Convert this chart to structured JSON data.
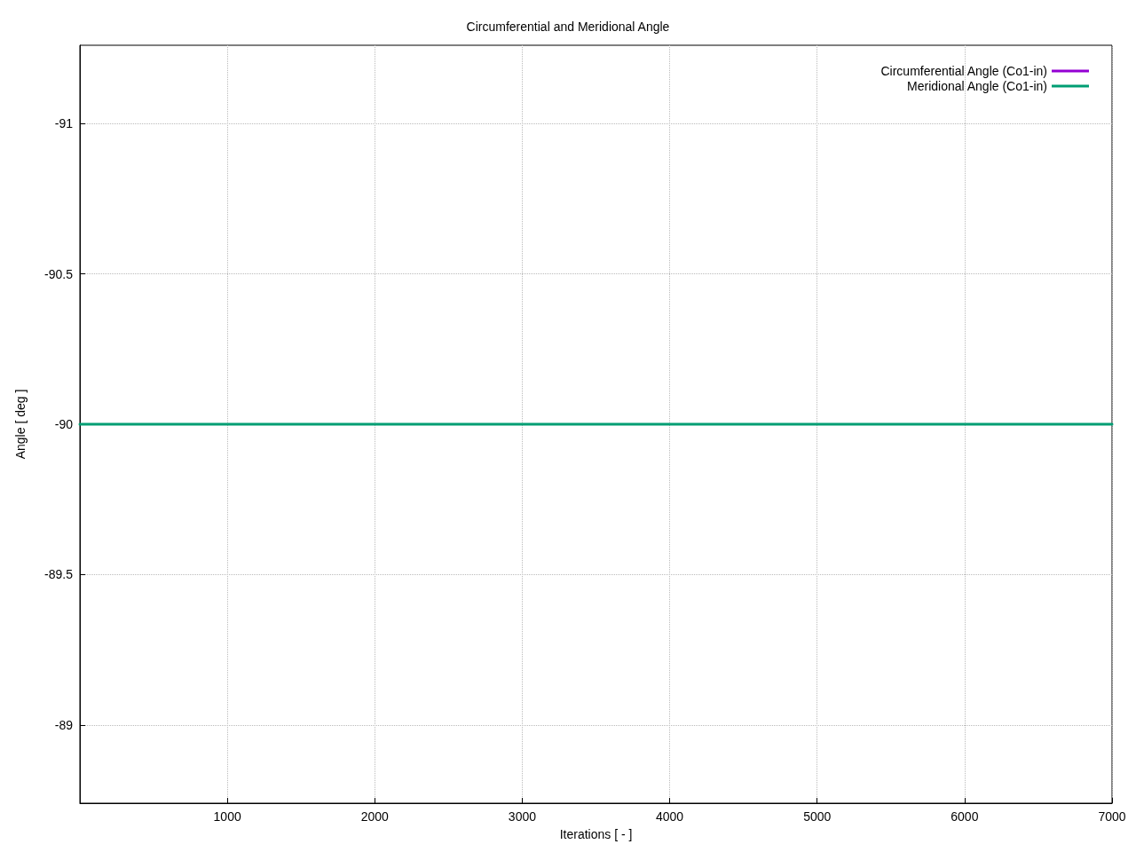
{
  "chart_data": {
    "type": "line",
    "title": "Circumferential and Meridional Angle",
    "xlabel": "Iterations [ - ]",
    "ylabel": "Angle [ deg ]",
    "x": [
      0,
      7000
    ],
    "xlim": [
      0,
      7000
    ],
    "xticks": [
      1000,
      2000,
      3000,
      4000,
      5000,
      6000,
      7000
    ],
    "ylim": [
      -88.74,
      -91.26
    ],
    "yticks": [
      -91,
      -90.5,
      -90,
      -89.5,
      -89
    ],
    "grid": true,
    "legend": "top right",
    "marker": "none",
    "line_style": "solid",
    "series": [
      {
        "name": "Circumferential Angle (Co1-in)",
        "color": "#9400d3",
        "values": [
          null,
          null
        ]
      },
      {
        "name": "Meridional Angle (Co1-in)",
        "color": "#009e73",
        "values": [
          -90,
          -90
        ]
      }
    ]
  }
}
